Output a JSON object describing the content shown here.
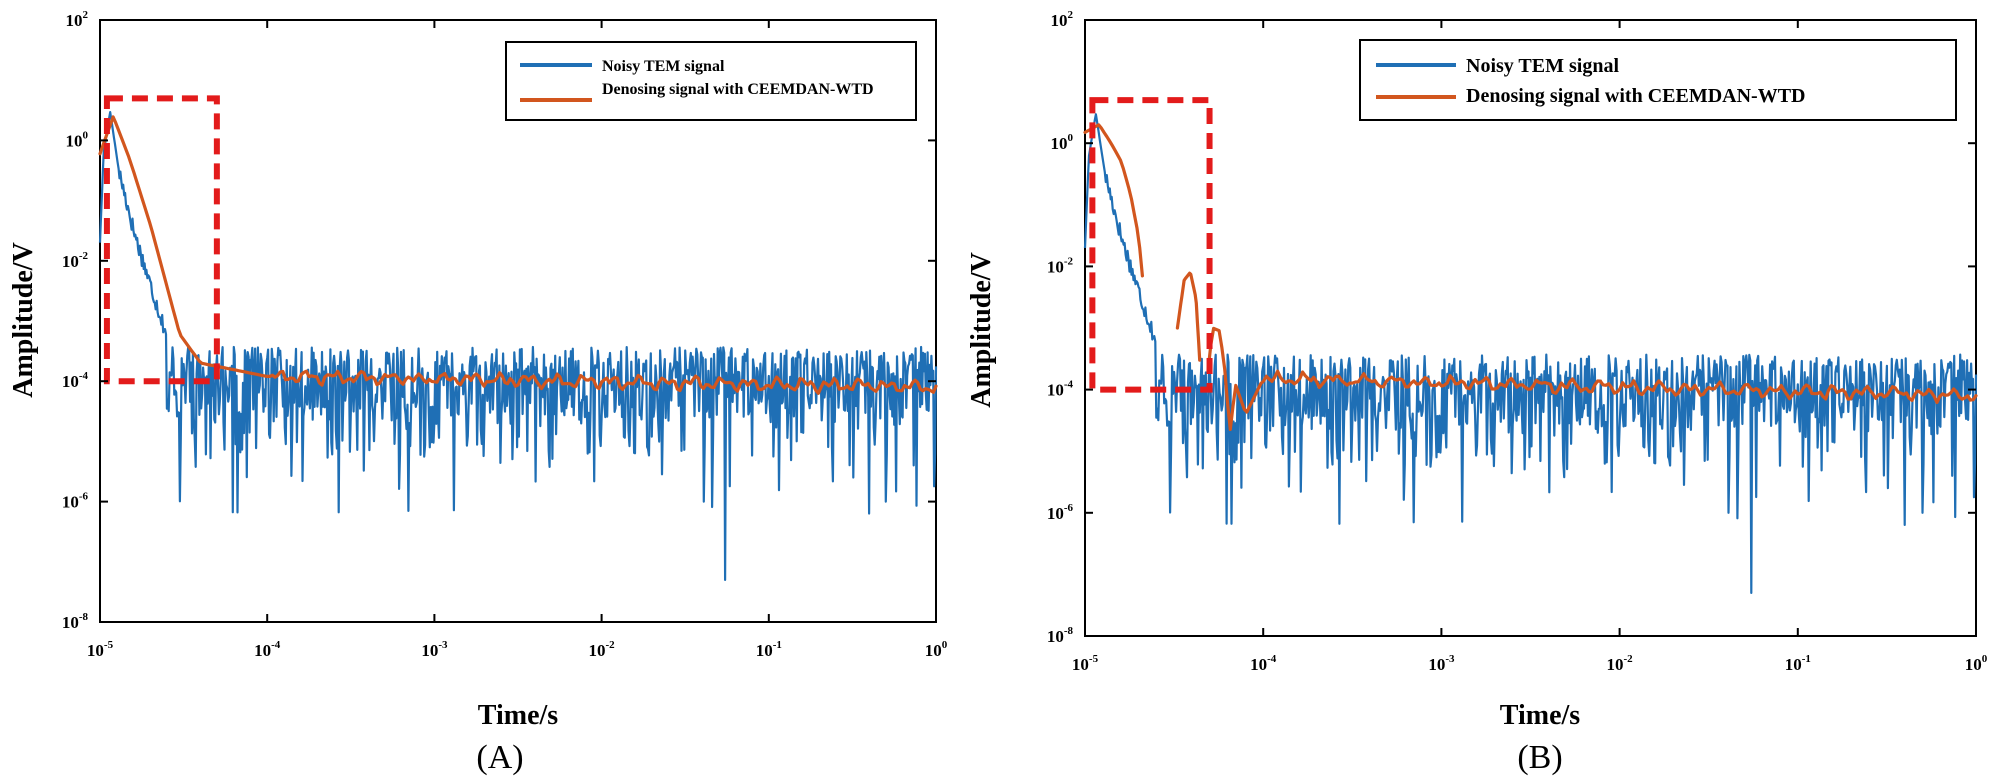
{
  "chart_data": [
    {
      "type": "line",
      "panel": "(A)",
      "xlabel": "Time/s",
      "ylabel": "Amplitude/V",
      "xscale": "log",
      "yscale": "log",
      "xlim": [
        1e-05,
        1
      ],
      "ylim": [
        1e-08,
        100
      ],
      "x_ticks": [
        {
          "base": "10",
          "exp": "-5"
        },
        {
          "base": "10",
          "exp": "-4"
        },
        {
          "base": "10",
          "exp": "-3"
        },
        {
          "base": "10",
          "exp": "-2"
        },
        {
          "base": "10",
          "exp": "-1"
        },
        {
          "base": "10",
          "exp": "0"
        }
      ],
      "y_ticks": [
        {
          "base": "10",
          "exp": "-8"
        },
        {
          "base": "10",
          "exp": "-6"
        },
        {
          "base": "10",
          "exp": "-4"
        },
        {
          "base": "10",
          "exp": "-2"
        },
        {
          "base": "10",
          "exp": "0"
        },
        {
          "base": "10",
          "exp": "2"
        }
      ],
      "legend": [
        "Noisy TEM signal",
        "Denosing signal with CEEMDAN-WTD"
      ],
      "legend_position": "top-right",
      "series": [
        {
          "name": "Noisy TEM signal",
          "color": "#1f6fb5",
          "trend": [
            [
              1e-05,
              0.02
            ],
            [
              1.05e-05,
              0.6
            ],
            [
              1.15e-05,
              3.0
            ],
            [
              1.3e-05,
              0.3
            ],
            [
              1.6e-05,
              0.03
            ],
            [
              2e-05,
              0.004
            ],
            [
              2.5e-05,
              0.0006
            ],
            [
              3e-05,
              0.00025
            ],
            [
              5e-05,
              0.00018
            ],
            [
              1.0,
              0.00012
            ]
          ],
          "noise_floor": 0.0001,
          "spikes": [
            [
              0.0007,
              7e-07
            ],
            [
              0.055,
              5e-08
            ],
            [
              0.5,
              1e-06
            ]
          ]
        },
        {
          "name": "Denosing signal with CEEMDAN-WTD",
          "color": "#d2561e",
          "trend": [
            [
              1e-05,
              0.6
            ],
            [
              1.2e-05,
              2.5
            ],
            [
              1.5e-05,
              0.5
            ],
            [
              2e-05,
              0.04
            ],
            [
              2.5e-05,
              0.004
            ],
            [
              3e-05,
              0.0006
            ],
            [
              4e-05,
              0.0002
            ],
            [
              0.0001,
              0.00012
            ],
            [
              1.0,
              8e-05
            ]
          ]
        }
      ],
      "highlight_box": {
        "x": [
          1.1e-05,
          5e-05
        ],
        "y": [
          0.0001,
          5.0
        ],
        "color": "#e31b1b"
      }
    },
    {
      "type": "line",
      "panel": "(B)",
      "xlabel": "Time/s",
      "ylabel": "Amplitude/V",
      "xscale": "log",
      "yscale": "log",
      "xlim": [
        1e-05,
        1
      ],
      "ylim": [
        1e-08,
        100
      ],
      "x_ticks": [
        {
          "base": "10",
          "exp": "-5"
        },
        {
          "base": "10",
          "exp": "-4"
        },
        {
          "base": "10",
          "exp": "-3"
        },
        {
          "base": "10",
          "exp": "-2"
        },
        {
          "base": "10",
          "exp": "-1"
        },
        {
          "base": "10",
          "exp": "0"
        }
      ],
      "y_ticks": [
        {
          "base": "10",
          "exp": "-8"
        },
        {
          "base": "10",
          "exp": "-6"
        },
        {
          "base": "10",
          "exp": "-4"
        },
        {
          "base": "10",
          "exp": "-2"
        },
        {
          "base": "10",
          "exp": "0"
        },
        {
          "base": "10",
          "exp": "2"
        }
      ],
      "legend": [
        "Noisy TEM signal",
        "Denosing signal with CEEMDAN-WTD"
      ],
      "legend_position": "top-right",
      "series": [
        {
          "name": "Noisy TEM signal",
          "color": "#1f6fb5",
          "trend": [
            [
              1e-05,
              0.02
            ],
            [
              1.05e-05,
              0.6
            ],
            [
              1.15e-05,
              3.0
            ],
            [
              1.3e-05,
              0.3
            ],
            [
              1.6e-05,
              0.03
            ],
            [
              2e-05,
              0.004
            ],
            [
              2.5e-05,
              0.0006
            ],
            [
              3e-05,
              0.00025
            ],
            [
              5e-05,
              0.00018
            ],
            [
              1.0,
              0.00012
            ]
          ],
          "noise_floor": 0.0001,
          "spikes": [
            [
              0.0007,
              7e-07
            ],
            [
              0.055,
              5e-08
            ],
            [
              0.5,
              1e-06
            ]
          ]
        },
        {
          "name": "Denosing signal with CEEMDAN-WTD",
          "color": "#d2561e",
          "segments": [
            [
              [
                1e-05,
                1.5
              ],
              [
                1.2e-05,
                2.0
              ],
              [
                1.4e-05,
                1.0
              ],
              [
                1.6e-05,
                0.5
              ],
              [
                1.8e-05,
                0.15
              ],
              [
                2e-05,
                0.03
              ],
              [
                2.1e-05,
                0.007
              ]
            ],
            [
              [
                3.3e-05,
                0.001
              ],
              [
                3.6e-05,
                0.006
              ],
              [
                3.9e-05,
                0.008
              ],
              [
                4.2e-05,
                0.003
              ],
              [
                4.4e-05,
                0.0003
              ]
            ],
            [
              [
                4.9e-05,
                0.0002
              ],
              [
                5.2e-05,
                0.001
              ],
              [
                5.7e-05,
                0.0009
              ],
              [
                6.1e-05,
                0.0002
              ],
              [
                6.5e-05,
                2e-05
              ],
              [
                7e-05,
                0.00012
              ],
              [
                8e-05,
                4e-05
              ],
              [
                0.0001,
                0.00015
              ],
              [
                1.0,
                8e-05
              ]
            ]
          ]
        }
      ],
      "highlight_box": {
        "x": [
          1.1e-05,
          5e-05
        ],
        "y": [
          0.0001,
          5.0
        ],
        "color": "#e31b1b"
      }
    }
  ]
}
